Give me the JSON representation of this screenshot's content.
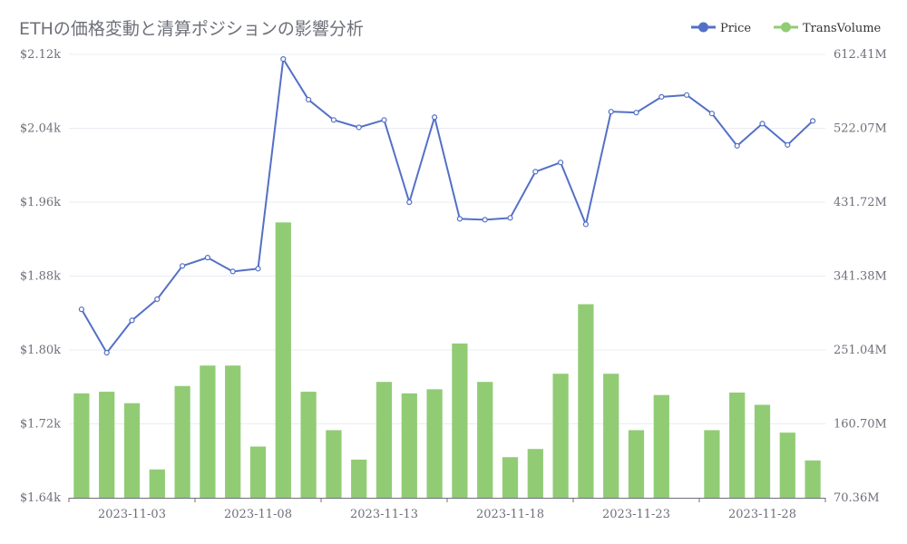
{
  "chart_data": {
    "type": "bar+line",
    "title": "ETHの価格変動と清算ポジションの影響分析",
    "legend": [
      "Price",
      "TransVolume"
    ],
    "legend_position": "top-right",
    "colors": {
      "price": "#5470c6",
      "volume": "#91cc75",
      "grid": "#e9ecf3",
      "axis": "#6e7079"
    },
    "categories": [
      "2023-11-01",
      "2023-11-02",
      "2023-11-03",
      "2023-11-04",
      "2023-11-05",
      "2023-11-06",
      "2023-11-07",
      "2023-11-08",
      "2023-11-09",
      "2023-11-10",
      "2023-11-11",
      "2023-11-12",
      "2023-11-13",
      "2023-11-14",
      "2023-11-15",
      "2023-11-16",
      "2023-11-17",
      "2023-11-18",
      "2023-11-19",
      "2023-11-20",
      "2023-11-21",
      "2023-11-22",
      "2023-11-23",
      "2023-11-24",
      "2023-11-25",
      "2023-11-26",
      "2023-11-27",
      "2023-11-28",
      "2023-11-29",
      "2023-11-30"
    ],
    "x_tick_labels": [
      "2023-11-03",
      "2023-11-08",
      "2023-11-13",
      "2023-11-18",
      "2023-11-23",
      "2023-11-28"
    ],
    "y_left": {
      "min": 1640,
      "max": 2120,
      "ticks": [
        "$1.64k",
        "$1.72k",
        "$1.80k",
        "$1.88k",
        "$1.96k",
        "$2.04k",
        "$2.12k"
      ]
    },
    "y_right": {
      "min": 70.36,
      "max": 612.41,
      "ticks": [
        "70.36M",
        "160.70M",
        "251.04M",
        "341.38M",
        "431.72M",
        "522.07M",
        "612.41M"
      ]
    },
    "series": [
      {
        "name": "Price",
        "type": "line",
        "axis": "left",
        "values": [
          1844,
          1797,
          1832,
          1855,
          1891,
          1900,
          1885,
          1888,
          2115,
          2071,
          2049,
          2041,
          2049,
          1960,
          2052,
          1942,
          1941,
          1943,
          1993,
          2003,
          1936,
          2058,
          2057,
          2074,
          2076,
          2056,
          2021,
          2045,
          2022,
          2048
        ]
      },
      {
        "name": "TransVolume",
        "type": "bar",
        "axis": "right",
        "values": [
          198,
          200,
          186,
          105,
          207,
          232,
          232,
          133,
          407,
          200,
          153,
          117,
          212,
          198,
          203,
          259,
          212,
          120,
          130,
          222,
          307,
          222,
          153,
          196,
          70.36,
          153,
          199,
          184,
          150,
          116
        ]
      }
    ]
  }
}
